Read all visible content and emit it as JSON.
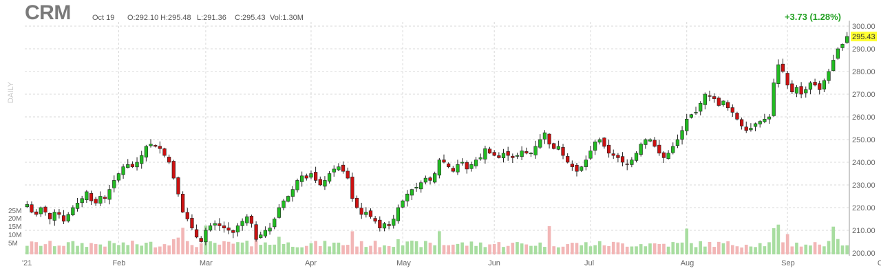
{
  "header": {
    "ticker": "CRM",
    "date": "Oct 19",
    "open": "O:292.10",
    "high": "H:295.48",
    "low": "L:291.36",
    "close": "C:295.43",
    "volume": "Vol:1.30M",
    "change": "+3.73 (1.28%)",
    "interval": "DAILY"
  },
  "chart_data": {
    "type": "candlestick",
    "ylim": [
      200,
      300
    ],
    "y_ticks": [
      "200.00",
      "210.00",
      "220.00",
      "230.00",
      "240.00",
      "250.00",
      "260.00",
      "270.00",
      "280.00",
      "290.00",
      "300.00"
    ],
    "volume_ticks": [
      "5M",
      "10M",
      "15M",
      "20M",
      "25M"
    ],
    "x_labels": [
      {
        "label": "'21",
        "index": 0
      },
      {
        "label": "Feb",
        "index": 20
      },
      {
        "label": "Mar",
        "index": 39
      },
      {
        "label": "Apr",
        "index": 62
      },
      {
        "label": "May",
        "index": 82
      },
      {
        "label": "Jun",
        "index": 102
      },
      {
        "label": "Jul",
        "index": 123
      },
      {
        "label": "Aug",
        "index": 144
      },
      {
        "label": "Sep",
        "index": 166
      },
      {
        "label": "Oct",
        "index": 187
      }
    ],
    "last_price_label": "295.43",
    "closes": [
      221.4,
      218,
      217,
      220,
      218,
      215,
      218,
      217,
      214,
      217,
      220,
      222,
      224,
      227,
      223,
      222,
      225,
      224,
      228,
      232,
      235,
      238,
      239,
      238,
      240,
      243,
      247,
      248,
      247,
      246,
      243,
      240,
      233,
      226,
      218,
      215,
      211,
      207,
      205,
      210,
      212,
      213,
      212,
      211,
      210,
      209,
      212,
      214,
      216,
      213,
      206,
      208,
      210,
      211,
      215,
      220,
      223,
      225,
      228,
      232,
      234,
      233,
      235,
      232,
      230,
      232,
      235,
      237,
      238,
      236,
      233,
      224,
      220,
      217,
      218,
      216,
      214,
      211,
      213,
      212,
      215,
      220,
      223,
      226,
      228,
      229,
      231,
      233,
      232,
      235,
      241,
      240,
      238,
      236,
      239,
      240,
      237,
      239,
      241,
      242,
      246,
      244,
      243,
      242,
      244,
      243,
      242,
      243,
      245,
      244,
      244,
      247,
      250,
      253,
      248,
      246,
      247,
      243,
      240,
      238,
      236,
      238,
      241,
      245,
      249,
      250,
      247,
      244,
      243,
      242,
      240,
      239,
      241,
      244,
      248,
      250,
      250,
      247,
      244,
      242,
      244,
      247,
      250,
      254,
      259,
      261,
      262,
      266,
      270,
      269,
      268,
      265,
      267,
      264,
      262,
      259,
      256,
      254,
      255,
      257,
      258,
      259,
      260,
      275,
      283,
      280,
      274,
      271,
      273,
      270,
      272,
      275,
      274,
      272,
      276,
      280,
      285,
      290,
      292,
      295.43
    ],
    "up_color": "#22bb22",
    "down_color": "#cc1111",
    "up_volume_color": "#a8dda0",
    "down_volume_color": "#f2b6b6",
    "last_price_bg": "#ffff33",
    "change_color": "#22a022"
  }
}
